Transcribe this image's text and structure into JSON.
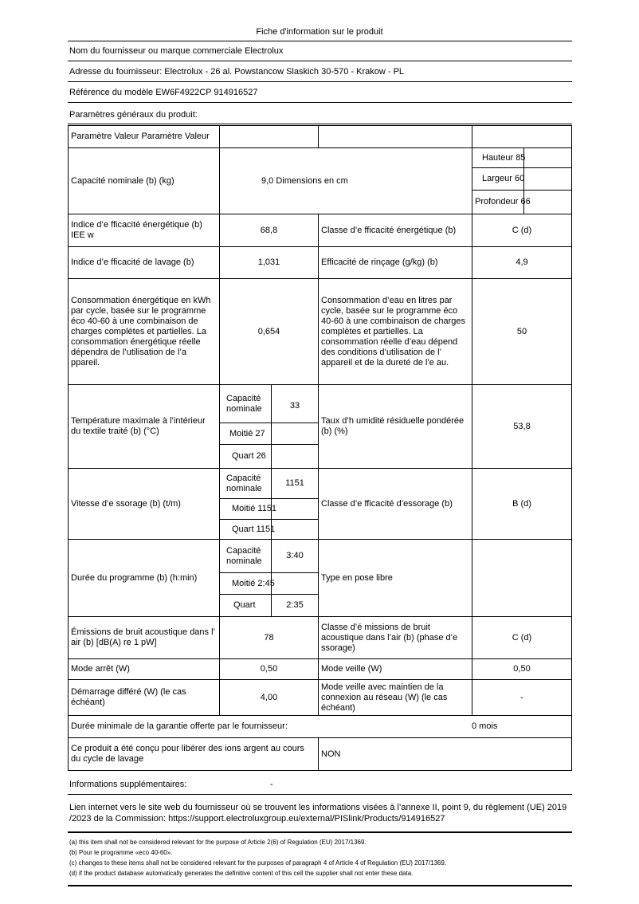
{
  "title": "Fiche d'information sur le produit",
  "supplier": "Nom du fournisseur ou marque commerciale Electrolux",
  "address": "Adresse du fournisseur: Electrolux - 26 al. Powstancow Slaskich 30-570 - Krakow - PL",
  "model": "Référence du modèle EW6F4922CP 914916527",
  "general": "Paramètres généraux du produit:",
  "table": {
    "header": "Paramètre Valeur Paramètre Valeur",
    "capacity_label": "Capacité nominale (b) (kg)",
    "capacity_value": "9,0 Dimensions en cm",
    "height": "Hauteur 85",
    "width": "Largeur 60",
    "depth": "Profondeur 66",
    "eei_label": "Indice d’e fficacité énergétique (b) IEE w",
    "eei_value": "68,8",
    "eclass_label": "Classe d’e fficacité énergétique (b)",
    "eclass_value": "C (d)",
    "wash_label": "Indice d’e fficacité de lavage (b)",
    "wash_value": "1,031",
    "rinse_label": "Efficacité de rinçage (g/kg) (b)",
    "rinse_value": "4,9",
    "energy_label": "Consommation énergétique en kWh par cycle, basée sur le programme éco 40-60 à une combinaison de charges complètes et partielles. La consommation énergétique réelle dépendra de l’utilisation de l’a ppareil.",
    "energy_value": "0,654",
    "water_label": "Consommation d’eau en litres par cycle, basée sur le programme éco 40-60 à une combinaison de charges complètes et partielles. La consommation réelle d’eau dépend des conditions d’utilisation de l’ appareil et de la dureté de l’e au.",
    "water_value": "50",
    "temp_label": "Température maximale à l’intérieur du textile traité (b) (°C)",
    "temp_full_label": "Capacité nominale",
    "temp_full": "33",
    "temp_half": "Moitié 27",
    "temp_quarter": "Quart 26",
    "moist_label": "Taux d’h umidité résiduelle pondérée (b) (%)",
    "moist_value": "53,8",
    "spin_label": "Vitesse d’e ssorage (b) (t/m)",
    "spin_full_label": "Capacité nominale",
    "spin_full": "1151",
    "spin_half": "Moitié 1151",
    "spin_quarter": "Quart 1151",
    "spinclass_label": "Classe d’e fficacité d’essorage (b)",
    "spinclass_value": "B (d)",
    "dur_label": "Durée du programme (b) (h:min)",
    "dur_full_label": "Capacité nominale",
    "dur_full": "3:40",
    "dur_half": "Moitié 2:45",
    "dur_quarter_label": "Quart",
    "dur_quarter": "2:35",
    "type_label": "Type en pose libre",
    "noise_label": "Émissions de bruit acoustique dans l’ air (b) [dB(A) re 1 pW]",
    "noise_value": "78",
    "noiseclass_label": "Classe d’é missions de bruit acoustique dans l’air (b) (phase d’e ssorage)",
    "noiseclass_value": "C (d)",
    "off_label": "Mode arrêt (W)",
    "off_value": "0,50",
    "standby_label": "Mode veille (W)",
    "standby_value": "0,50",
    "delay_label": "Démarrage différé (W) (le cas échéant)",
    "delay_value": "4,00",
    "netstandby_label": "Mode veille avec maintien de la connexion au réseau (W) (le cas échéant)",
    "netstandby_value": "-",
    "warranty_label": "Durée minimale de la garantie offerte par le fournisseur:",
    "warranty_value": "0 mois",
    "silver_label": "Ce produit a été conçu pour libérer des ions argent au cours du cycle de lavage",
    "silver_value": "NON"
  },
  "extra_label": "Informations supplémentaires:",
  "extra_value": "-",
  "link": "Lien internet vers le site web du fournisseur où se trouvent les informations visées à l’annexe II, point 9, du règlement (UE) 2019 /2023 de la Commission: https://support.electroluxgroup.eu/external/PISlink/Products/914916527",
  "footnotes": [
    "(a) this item shall not be considered relevant for the purpose of Article 2(6) of Regulation (EU) 2017/1369.",
    "(b) Pour le programme «eco 40-60».",
    "(c) changes to these items shall not be considered relevant for the purposes of paragraph 4 of Article 4 of Regulation (EU) 2017/1369.",
    "(d) if the product database automatically generates the definitive content of this cell the supplier shall not enter these data."
  ]
}
